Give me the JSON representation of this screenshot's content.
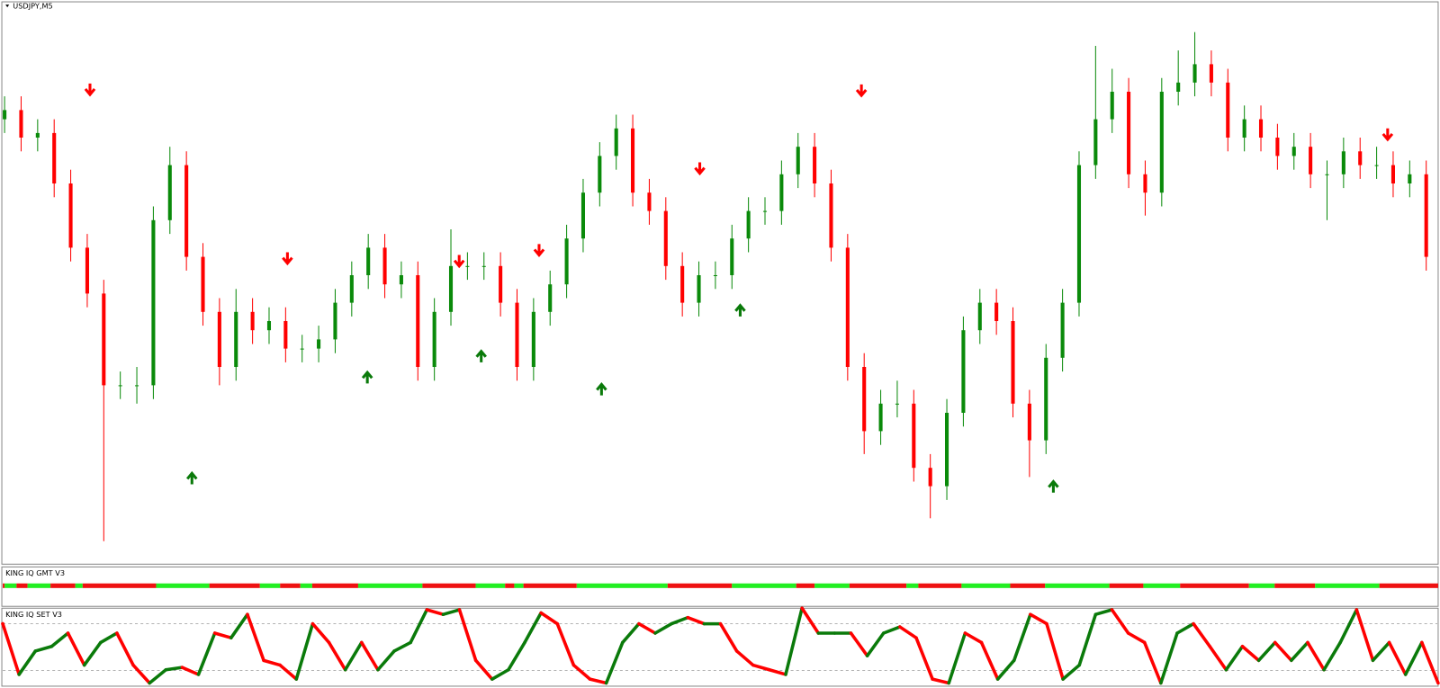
{
  "chart_data": [
    {
      "type": "candlestick",
      "title": "USDJPY,M5",
      "ylim": [
        0,
        600
      ],
      "up_color": "#0a8a0a",
      "down_color": "#ff0000",
      "open": [
        470,
        480,
        450,
        455,
        400,
        330,
        280,
        180,
        180,
        180,
        360,
        420,
        320,
        260,
        200,
        260,
        240,
        250,
        220,
        220,
        230,
        270,
        300,
        330,
        290,
        300,
        200,
        260,
        310,
        310,
        310,
        270,
        200,
        260,
        290,
        340,
        390,
        430,
        460,
        390,
        370,
        310,
        270,
        300,
        300,
        340,
        370,
        370,
        410,
        440,
        400,
        330,
        200,
        130,
        160,
        160,
        90,
        70,
        150,
        240,
        270,
        250,
        160,
        120,
        210,
        270,
        420,
        470,
        500,
        410,
        390,
        500,
        510,
        530,
        510,
        450,
        470,
        450,
        430,
        440,
        410,
        410,
        435,
        420,
        420,
        400,
        410
      ],
      "high": [
        495,
        495,
        470,
        470,
        415,
        345,
        295,
        195,
        200,
        375,
        440,
        435,
        335,
        275,
        285,
        275,
        265,
        265,
        235,
        245,
        285,
        315,
        345,
        345,
        315,
        315,
        275,
        350,
        325,
        325,
        325,
        285,
        275,
        305,
        355,
        405,
        445,
        475,
        475,
        405,
        385,
        325,
        315,
        315,
        355,
        385,
        385,
        425,
        455,
        455,
        415,
        345,
        215,
        175,
        185,
        175,
        105,
        165,
        255,
        285,
        285,
        265,
        175,
        225,
        285,
        435,
        550,
        525,
        515,
        425,
        515,
        545,
        565,
        545,
        525,
        485,
        485,
        465,
        455,
        455,
        425,
        450,
        450,
        440,
        435,
        425,
        425
      ],
      "low": [
        455,
        435,
        435,
        385,
        315,
        265,
        10,
        165,
        160,
        165,
        345,
        305,
        245,
        180,
        185,
        225,
        225,
        205,
        205,
        205,
        215,
        255,
        285,
        275,
        275,
        185,
        185,
        245,
        295,
        295,
        255,
        185,
        185,
        245,
        275,
        325,
        375,
        415,
        375,
        355,
        295,
        255,
        255,
        285,
        285,
        325,
        355,
        355,
        395,
        385,
        315,
        185,
        105,
        115,
        145,
        75,
        35,
        55,
        135,
        225,
        235,
        145,
        80,
        105,
        195,
        255,
        405,
        455,
        395,
        365,
        375,
        485,
        495,
        495,
        435,
        435,
        435,
        415,
        415,
        395,
        360,
        395,
        405,
        405,
        385,
        385,
        305
      ],
      "close": [
        480,
        450,
        455,
        400,
        330,
        280,
        180,
        180,
        180,
        360,
        420,
        320,
        260,
        200,
        260,
        240,
        250,
        220,
        220,
        230,
        270,
        300,
        330,
        290,
        300,
        200,
        260,
        310,
        310,
        310,
        270,
        200,
        260,
        290,
        340,
        390,
        430,
        460,
        390,
        370,
        310,
        270,
        300,
        300,
        340,
        370,
        370,
        410,
        440,
        400,
        330,
        200,
        130,
        160,
        160,
        90,
        70,
        150,
        240,
        270,
        250,
        160,
        120,
        210,
        270,
        420,
        470,
        500,
        410,
        390,
        500,
        510,
        530,
        510,
        450,
        470,
        450,
        430,
        440,
        410,
        410,
        435,
        420,
        420,
        400,
        410,
        320
      ]
    },
    {
      "type": "line",
      "title": "KING IQ SET V3",
      "ylim": [
        0,
        100
      ],
      "levels": [
        80,
        20
      ],
      "up_color": "#0a7a0a",
      "down_color": "#ff0000",
      "values": [
        80,
        15,
        45,
        51,
        68,
        27,
        56,
        68,
        27,
        4,
        21,
        24,
        15,
        68,
        62,
        92,
        33,
        27,
        9,
        80,
        56,
        21,
        56,
        21,
        45,
        56,
        98,
        92,
        98,
        33,
        9,
        21,
        56,
        94,
        80,
        27,
        9,
        4,
        56,
        80,
        68,
        80,
        88,
        80,
        80,
        45,
        27,
        21,
        15,
        100,
        68,
        68,
        68,
        39,
        68,
        76,
        62,
        9,
        4,
        68,
        56,
        9,
        33,
        92,
        80,
        9,
        27,
        92,
        98,
        68,
        56,
        4,
        68,
        80,
        51,
        21,
        51,
        33,
        56,
        33,
        56,
        21,
        56,
        98,
        33,
        56,
        15,
        56,
        4
      ]
    }
  ],
  "gmt_panel": {
    "title": "KING IQ GMT V3"
  }
}
